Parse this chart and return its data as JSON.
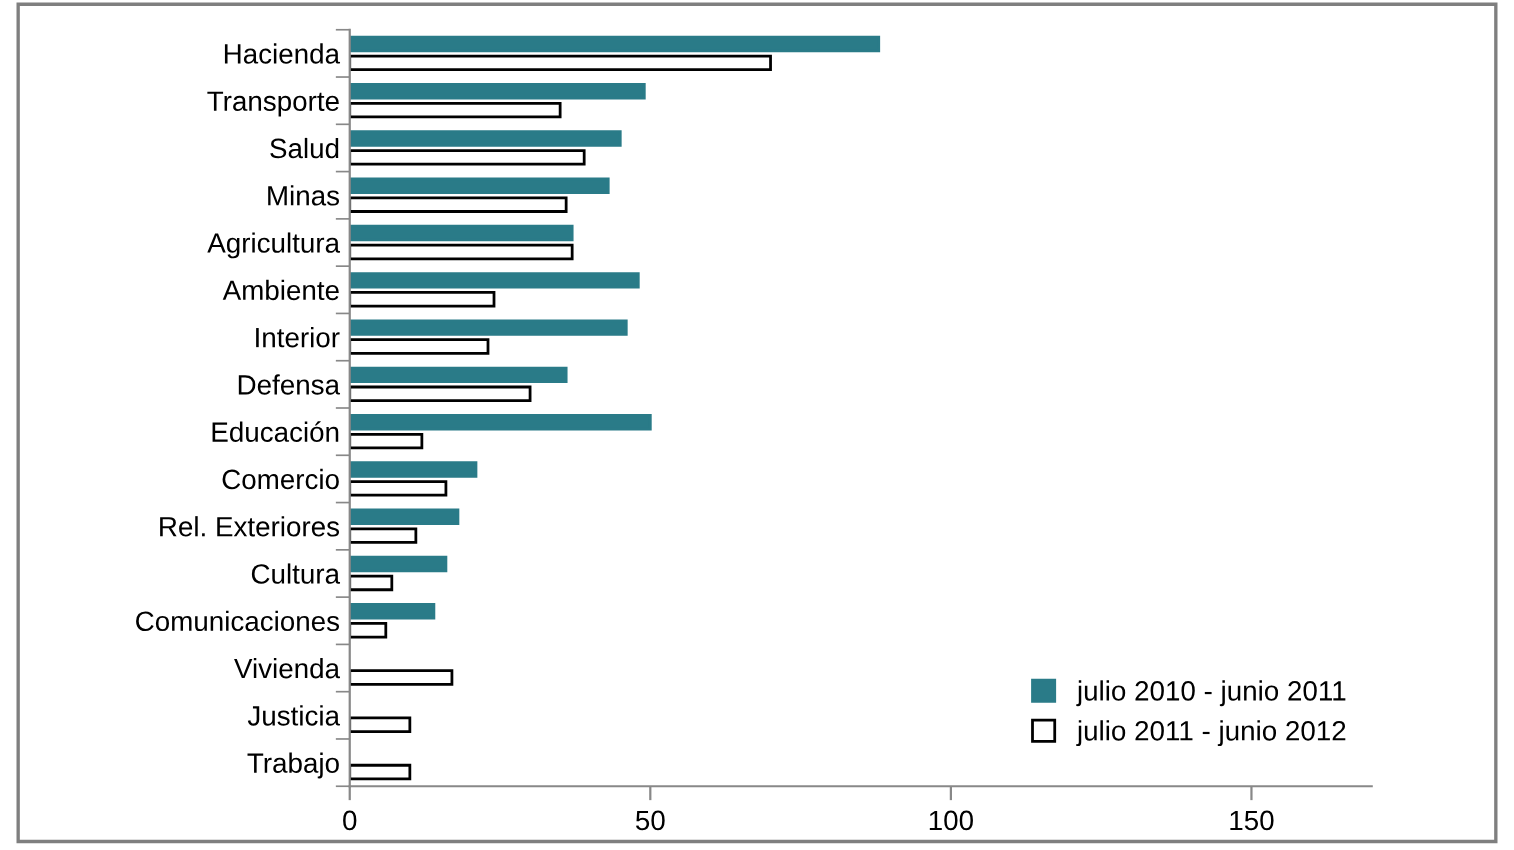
{
  "chart_data": {
    "type": "bar",
    "orientation": "horizontal",
    "categories": [
      "Hacienda",
      "Transporte",
      "Salud",
      "Minas",
      "Agricultura",
      "Ambiente",
      "Interior",
      "Defensa",
      "Educación",
      "Comercio",
      "Rel. Exteriores",
      "Cultura",
      "Comunicaciones",
      "Vivienda",
      "Justicia",
      "Trabajo"
    ],
    "series": [
      {
        "name": "julio 2010 - junio 2011",
        "color": "#2a7b88",
        "values": [
          88,
          49,
          45,
          43,
          37,
          48,
          46,
          36,
          50,
          21,
          18,
          16,
          14,
          null,
          null,
          null
        ]
      },
      {
        "name": "julio 2011 - junio 2012",
        "color": "#ffffff",
        "values": [
          70,
          35,
          39,
          36,
          37,
          24,
          23,
          30,
          12,
          16,
          11,
          7,
          6,
          17,
          10,
          10
        ]
      }
    ],
    "xlim": [
      0,
      170
    ],
    "xticks": [
      0,
      50,
      100,
      150
    ],
    "grid": false,
    "legend": "bottom right"
  }
}
